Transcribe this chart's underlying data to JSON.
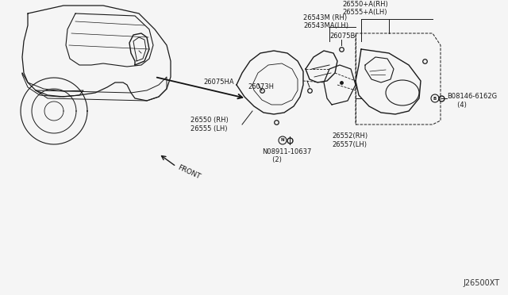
{
  "bg_color": "#f5f5f5",
  "diagram_id": "J26500XT",
  "lc": "#1a1a1a",
  "labels": {
    "part1": "26550+A(RH)\n26555+A(LH)",
    "part2": "26543M (RH)\n26543MA(LH)",
    "part3": "26075B",
    "part4": "26075HA",
    "part5": "26073H",
    "part6": "26550 (RH)\n26555 (LH)",
    "part7": "B08146-6162G\n    (4)",
    "part8": "26552(RH)\n26557(LH)",
    "part9": "N08911-10637\n    (2)",
    "front": "FRONT"
  }
}
